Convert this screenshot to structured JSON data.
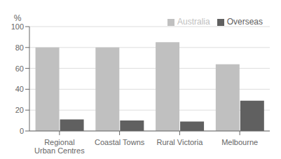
{
  "chart_data": {
    "type": "bar",
    "categories": [
      "Regional\nUrban Centres",
      "Coastal Towns",
      "Rural Victoria",
      "Melbourne"
    ],
    "series": [
      {
        "name": "Australia",
        "color": "#c0c0c0",
        "values": [
          80,
          80,
          85,
          64
        ]
      },
      {
        "name": "Overseas",
        "color": "#606060",
        "values": [
          11,
          10,
          9,
          29
        ]
      }
    ],
    "ylabel": "%",
    "ylim": [
      0,
      100
    ],
    "yticks": [
      0,
      20,
      40,
      60,
      80,
      100
    ],
    "grid": true,
    "legend": "upper right"
  }
}
